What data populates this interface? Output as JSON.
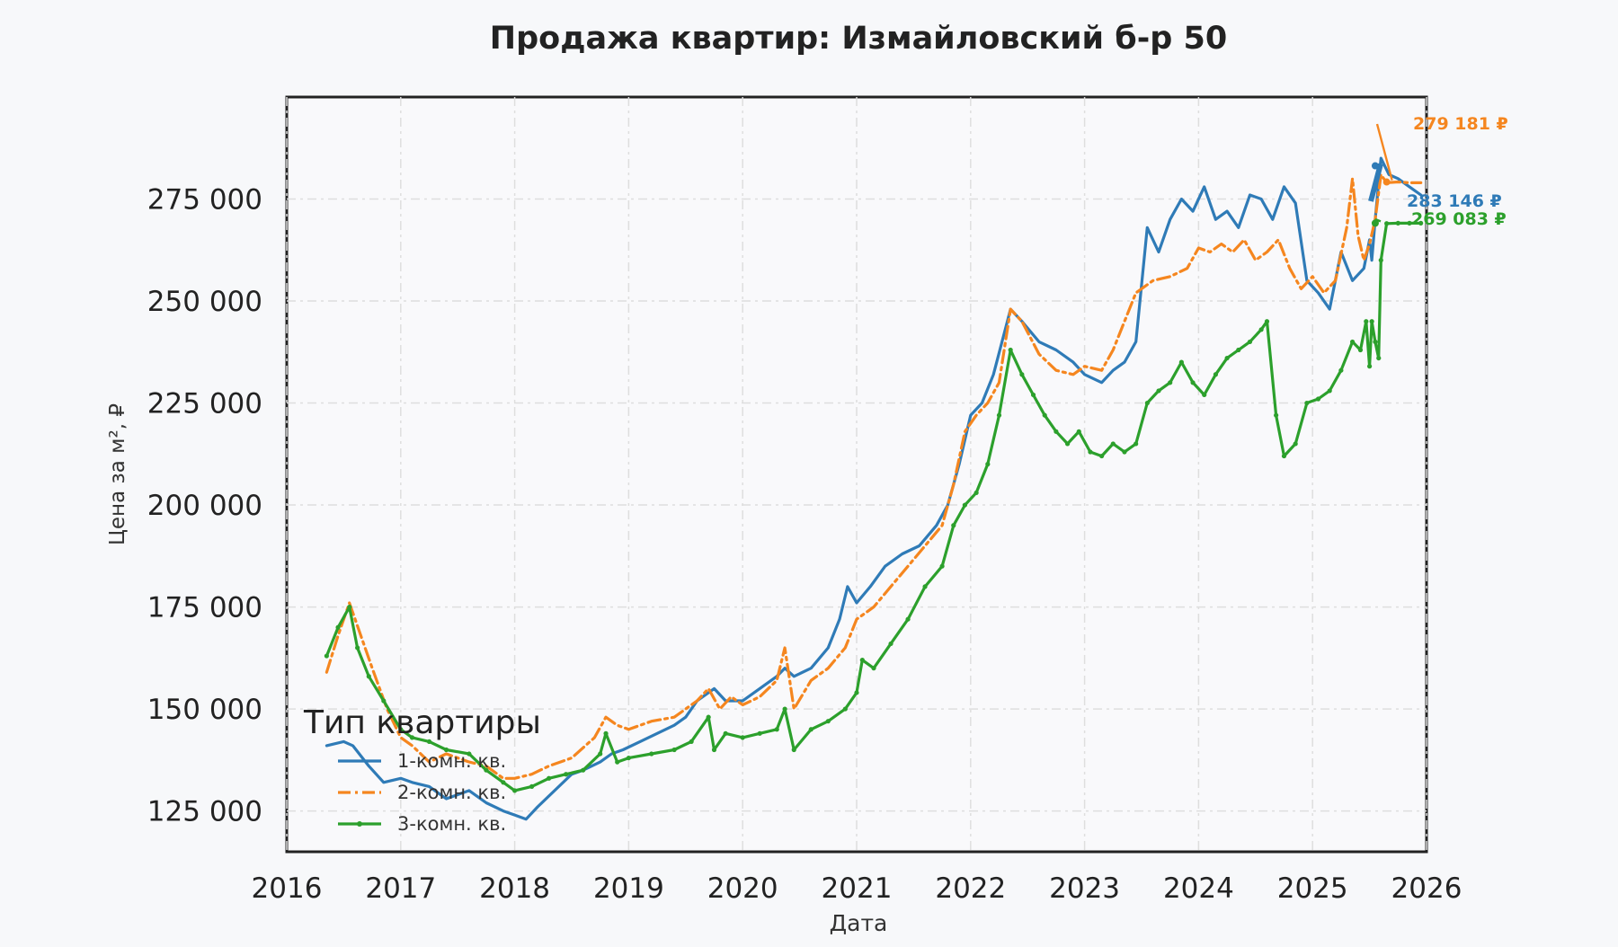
{
  "chart_data": {
    "type": "line",
    "title": "Продажа квартир: Измайловский б-р 50",
    "xlabel": "Дата",
    "ylabel": "Цена за м², ₽",
    "xlim": [
      2016.0,
      2026.0
    ],
    "ylim": [
      115000,
      300000
    ],
    "x_ticks": [
      2016,
      2017,
      2018,
      2019,
      2020,
      2021,
      2022,
      2023,
      2024,
      2025,
      2026
    ],
    "x_tick_labels": [
      "2016",
      "2017",
      "2018",
      "2019",
      "2020",
      "2021",
      "2022",
      "2023",
      "2024",
      "2025",
      "2026"
    ],
    "y_ticks": [
      125000,
      150000,
      175000,
      200000,
      225000,
      250000,
      275000
    ],
    "y_tick_labels": [
      "125 000",
      "150 000",
      "175 000",
      "200 000",
      "225 000",
      "250 000",
      "275 000"
    ],
    "grid": true,
    "legend": {
      "title": "Тип квартиры",
      "position": "lower-left"
    },
    "series": [
      {
        "name": "1-комн. кв.",
        "color": "#2f7bb7",
        "line_style": "solid",
        "x": [
          2016.35,
          2016.5,
          2016.58,
          2016.72,
          2016.85,
          2017.0,
          2017.1,
          2017.25,
          2017.4,
          2017.6,
          2017.75,
          2017.9,
          2018.0,
          2018.1,
          2018.2,
          2018.35,
          2018.5,
          2018.6,
          2018.75,
          2018.85,
          2018.95,
          2019.1,
          2019.25,
          2019.4,
          2019.5,
          2019.6,
          2019.75,
          2019.85,
          2020.0,
          2020.15,
          2020.3,
          2020.37,
          2020.45,
          2020.6,
          2020.75,
          2020.85,
          2020.92,
          2021.0,
          2021.12,
          2021.25,
          2021.4,
          2021.55,
          2021.7,
          2021.8,
          2021.9,
          2022.0,
          2022.1,
          2022.2,
          2022.35,
          2022.45,
          2022.6,
          2022.75,
          2022.9,
          2023.0,
          2023.15,
          2023.25,
          2023.35,
          2023.45,
          2023.55,
          2023.65,
          2023.75,
          2023.85,
          2023.95,
          2024.05,
          2024.15,
          2024.25,
          2024.35,
          2024.45,
          2024.55,
          2024.65,
          2024.75,
          2024.85,
          2024.95,
          2025.05,
          2025.15,
          2025.25,
          2025.35,
          2025.45,
          2025.5,
          2025.52,
          2025.55,
          2025.6,
          2025.67,
          2025.75,
          2025.85,
          2025.95
        ],
        "y": [
          141000,
          142000,
          141000,
          136000,
          132000,
          133000,
          132000,
          131000,
          128000,
          130000,
          127000,
          125000,
          124000,
          123000,
          126000,
          130000,
          134000,
          135000,
          137000,
          139000,
          140000,
          142000,
          144000,
          146000,
          148000,
          152000,
          155000,
          152000,
          152000,
          155000,
          158000,
          160000,
          158000,
          160000,
          165000,
          172000,
          180000,
          176000,
          180000,
          185000,
          188000,
          190000,
          195000,
          200000,
          210000,
          222000,
          225000,
          232000,
          248000,
          245000,
          240000,
          238000,
          235000,
          232000,
          230000,
          233000,
          235000,
          240000,
          268000,
          262000,
          270000,
          275000,
          272000,
          278000,
          270000,
          272000,
          268000,
          276000,
          275000,
          270000,
          278000,
          274000,
          255000,
          252000,
          248000,
          262000,
          255000,
          258000,
          265000,
          260000,
          270000,
          285000,
          281000,
          280000,
          278000,
          276000
        ]
      },
      {
        "name": "2-комн. кв.",
        "color": "#f5861f",
        "line_style": "dashdot",
        "x": [
          2016.35,
          2016.45,
          2016.55,
          2016.65,
          2016.75,
          2016.88,
          2017.0,
          2017.1,
          2017.25,
          2017.4,
          2017.6,
          2017.75,
          2017.9,
          2018.0,
          2018.15,
          2018.3,
          2018.5,
          2018.7,
          2018.8,
          2018.9,
          2019.0,
          2019.2,
          2019.4,
          2019.6,
          2019.7,
          2019.8,
          2019.9,
          2020.0,
          2020.15,
          2020.3,
          2020.37,
          2020.45,
          2020.6,
          2020.75,
          2020.9,
          2021.0,
          2021.15,
          2021.3,
          2021.45,
          2021.6,
          2021.75,
          2021.85,
          2021.95,
          2022.05,
          2022.15,
          2022.25,
          2022.35,
          2022.45,
          2022.6,
          2022.75,
          2022.9,
          2023.0,
          2023.15,
          2023.25,
          2023.35,
          2023.45,
          2023.6,
          2023.75,
          2023.9,
          2024.0,
          2024.1,
          2024.2,
          2024.3,
          2024.4,
          2024.5,
          2024.6,
          2024.7,
          2024.8,
          2024.9,
          2025.0,
          2025.1,
          2025.2,
          2025.3,
          2025.35,
          2025.4,
          2025.45,
          2025.5,
          2025.55,
          2025.6,
          2025.65,
          2025.75,
          2025.85,
          2025.95
        ],
        "y": [
          159000,
          168000,
          176000,
          168000,
          160000,
          150000,
          143000,
          141000,
          137000,
          139000,
          137000,
          136000,
          133000,
          133000,
          134000,
          136000,
          138000,
          143000,
          148000,
          146000,
          145000,
          147000,
          148000,
          152000,
          155000,
          150000,
          153000,
          151000,
          153000,
          157000,
          165000,
          150000,
          157000,
          160000,
          165000,
          172000,
          175000,
          180000,
          185000,
          190000,
          195000,
          205000,
          218000,
          222000,
          225000,
          230000,
          248000,
          245000,
          237000,
          233000,
          232000,
          234000,
          233000,
          238000,
          245000,
          252000,
          255000,
          256000,
          258000,
          263000,
          262000,
          264000,
          262000,
          265000,
          260000,
          262000,
          265000,
          258000,
          253000,
          256000,
          252000,
          255000,
          268000,
          280000,
          266000,
          260000,
          264000,
          270000,
          281000,
          279000,
          279181,
          279000,
          279000
        ]
      },
      {
        "name": "3-комн. кв.",
        "color": "#2ca02c",
        "line_style": "solid-marker",
        "x": [
          2016.35,
          2016.45,
          2016.55,
          2016.62,
          2016.72,
          2016.85,
          2017.0,
          2017.1,
          2017.25,
          2017.4,
          2017.6,
          2017.75,
          2017.9,
          2018.0,
          2018.15,
          2018.3,
          2018.45,
          2018.6,
          2018.75,
          2018.8,
          2018.9,
          2019.0,
          2019.2,
          2019.4,
          2019.55,
          2019.7,
          2019.75,
          2019.85,
          2020.0,
          2020.15,
          2020.3,
          2020.37,
          2020.45,
          2020.6,
          2020.75,
          2020.9,
          2021.0,
          2021.05,
          2021.15,
          2021.3,
          2021.45,
          2021.6,
          2021.75,
          2021.85,
          2021.95,
          2022.05,
          2022.15,
          2022.25,
          2022.35,
          2022.45,
          2022.55,
          2022.65,
          2022.75,
          2022.85,
          2022.95,
          2023.05,
          2023.15,
          2023.25,
          2023.35,
          2023.45,
          2023.55,
          2023.65,
          2023.75,
          2023.85,
          2023.95,
          2024.05,
          2024.15,
          2024.25,
          2024.35,
          2024.45,
          2024.55,
          2024.6,
          2024.68,
          2024.75,
          2024.85,
          2024.95,
          2025.05,
          2025.15,
          2025.25,
          2025.35,
          2025.42,
          2025.47,
          2025.5,
          2025.52,
          2025.55,
          2025.58,
          2025.6,
          2025.65,
          2025.75,
          2025.85,
          2025.95
        ],
        "y": [
          163000,
          170000,
          175000,
          165000,
          158000,
          152000,
          145000,
          143000,
          142000,
          140000,
          139000,
          135000,
          132000,
          130000,
          131000,
          133000,
          134000,
          135000,
          139000,
          144000,
          137000,
          138000,
          139000,
          140000,
          142000,
          148000,
          140000,
          144000,
          143000,
          144000,
          145000,
          150000,
          140000,
          145000,
          147000,
          150000,
          154000,
          162000,
          160000,
          166000,
          172000,
          180000,
          185000,
          195000,
          200000,
          203000,
          210000,
          222000,
          238000,
          232000,
          227000,
          222000,
          218000,
          215000,
          218000,
          213000,
          212000,
          215000,
          213000,
          215000,
          225000,
          228000,
          230000,
          235000,
          230000,
          227000,
          232000,
          236000,
          238000,
          240000,
          243000,
          245000,
          222000,
          212000,
          215000,
          225000,
          226000,
          228000,
          233000,
          240000,
          238000,
          245000,
          234000,
          245000,
          240000,
          236000,
          260000,
          269000,
          269083,
          269083,
          269083
        ]
      }
    ],
    "annotations": [
      {
        "series": "2-комн. кв.",
        "text": "279 181 ₽",
        "color": "#f5861f",
        "x": 2025.65,
        "y": 279181
      },
      {
        "series": "1-комн. кв.",
        "text": "283 146 ₽",
        "color": "#2f7bb7",
        "x": 2025.55,
        "y": 283146
      },
      {
        "series": "3-комн. кв.",
        "text": "269 083 ₽",
        "color": "#2ca02c",
        "x": 2025.55,
        "y": 269083
      }
    ]
  }
}
